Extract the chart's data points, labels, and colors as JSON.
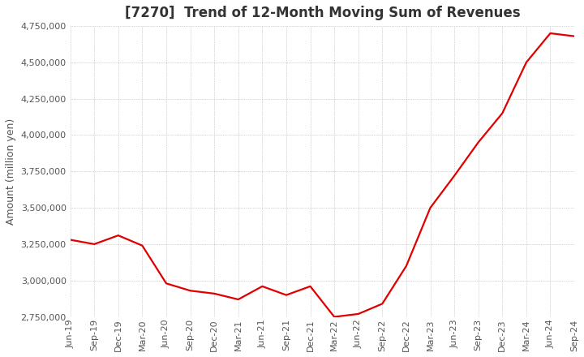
{
  "title": "[7270]  Trend of 12-Month Moving Sum of Revenues",
  "ylabel": "Amount (million yen)",
  "x_labels": [
    "Jun-19",
    "Sep-19",
    "Dec-19",
    "Mar-20",
    "Jun-20",
    "Sep-20",
    "Dec-20",
    "Mar-21",
    "Jun-21",
    "Sep-21",
    "Dec-21",
    "Mar-22",
    "Jun-22",
    "Sep-22",
    "Dec-22",
    "Mar-23",
    "Jun-23",
    "Sep-23",
    "Dec-23",
    "Mar-24",
    "Jun-24",
    "Sep-24"
  ],
  "values": [
    3280000,
    3250000,
    3310000,
    3240000,
    2980000,
    2930000,
    2910000,
    2870000,
    2960000,
    2900000,
    2960000,
    2750000,
    2770000,
    2840000,
    3100000,
    3500000,
    3720000,
    3950000,
    4150000,
    4500000,
    4700000,
    4680000
  ],
  "line_color": "#e00000",
  "ylim_min": 2750000,
  "ylim_max": 4750000,
  "bg_color": "#ffffff",
  "grid_color": "#aaaaaa",
  "title_fontsize": 12,
  "label_fontsize": 9,
  "tick_fontsize": 8
}
